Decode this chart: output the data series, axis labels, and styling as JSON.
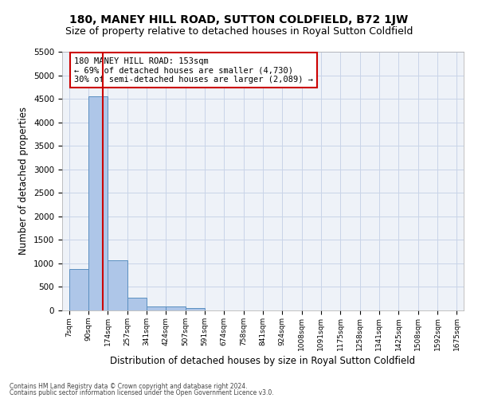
{
  "title": "180, MANEY HILL ROAD, SUTTON COLDFIELD, B72 1JW",
  "subtitle": "Size of property relative to detached houses in Royal Sutton Coldfield",
  "xlabel": "Distribution of detached houses by size in Royal Sutton Coldfield",
  "ylabel": "Number of detached properties",
  "footnote1": "Contains HM Land Registry data © Crown copyright and database right 2024.",
  "footnote2": "Contains public sector information licensed under the Open Government Licence v3.0.",
  "bar_edges": [
    7,
    90,
    174,
    257,
    341,
    424,
    507,
    591,
    674,
    758,
    841,
    924,
    1008,
    1091,
    1175,
    1258,
    1341,
    1425,
    1508,
    1592,
    1675
  ],
  "bar_values": [
    880,
    4560,
    1060,
    275,
    85,
    80,
    55,
    0,
    0,
    0,
    0,
    0,
    0,
    0,
    0,
    0,
    0,
    0,
    0,
    0
  ],
  "bar_color": "#aec6e8",
  "bar_edgecolor": "#5a8fc0",
  "property_size": 153,
  "vline_color": "#cc0000",
  "annotation_text": "180 MANEY HILL ROAD: 153sqm\n← 69% of detached houses are smaller (4,730)\n30% of semi-detached houses are larger (2,089) →",
  "annotation_box_color": "#cc0000",
  "annotation_text_color": "#000000",
  "ylim": [
    0,
    5500
  ],
  "yticks": [
    0,
    500,
    1000,
    1500,
    2000,
    2500,
    3000,
    3500,
    4000,
    4500,
    5000,
    5500
  ],
  "grid_color": "#c8d4e8",
  "bg_color": "#eef2f8",
  "title_fontsize": 10,
  "subtitle_fontsize": 9,
  "xlabel_fontsize": 8.5,
  "ylabel_fontsize": 8.5
}
